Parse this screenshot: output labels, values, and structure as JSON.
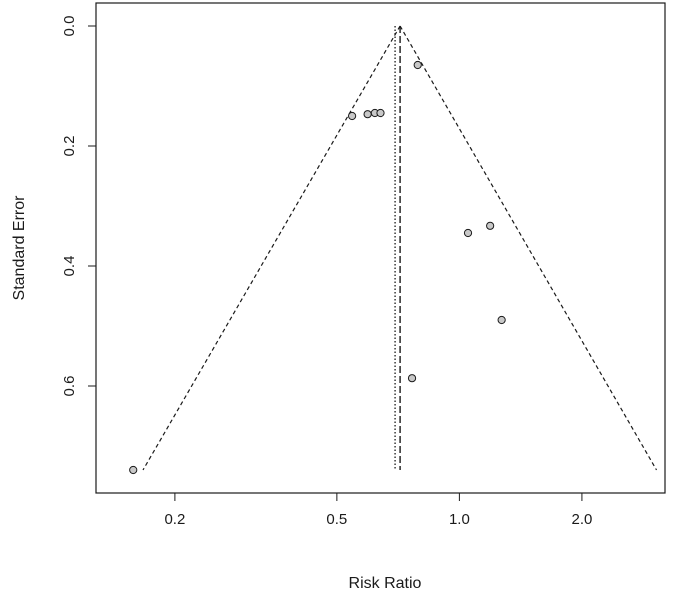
{
  "chart_data": {
    "type": "scatter",
    "subtype": "funnel-plot",
    "title": "",
    "xlabel": "Risk Ratio",
    "ylabel": "Standard Error",
    "x_scale": "log",
    "x_ticks": [
      0.2,
      0.5,
      1.0,
      2.0
    ],
    "x_tick_labels": [
      "0.2",
      "0.5",
      "1.0",
      "2.0"
    ],
    "y_ticks": [
      0.0,
      0.2,
      0.4,
      0.6
    ],
    "y_tick_labels": [
      "0.0",
      "0.2",
      "0.4",
      "0.6"
    ],
    "y_reversed": true,
    "xlim": [
      0.128,
      3.2
    ],
    "ylim": [
      0.0,
      0.76
    ],
    "grid": false,
    "points": [
      {
        "x": 0.158,
        "y": 0.74
      },
      {
        "x": 0.545,
        "y": 0.15
      },
      {
        "x": 0.595,
        "y": 0.147
      },
      {
        "x": 0.62,
        "y": 0.145
      },
      {
        "x": 0.64,
        "y": 0.145
      },
      {
        "x": 0.79,
        "y": 0.065
      },
      {
        "x": 1.05,
        "y": 0.345
      },
      {
        "x": 1.19,
        "y": 0.333
      },
      {
        "x": 1.27,
        "y": 0.49
      },
      {
        "x": 0.765,
        "y": 0.587
      }
    ],
    "summary_estimate": 0.715,
    "alt_estimate": 0.695,
    "funnel_base_se": 0.74,
    "funnel_left_x": 0.167,
    "funnel_right_x": 3.05,
    "colors": {
      "point_fill": "#c8c8c8",
      "point_stroke": "#1a1a1a",
      "line": "#1a1a1a",
      "frame": "#1a1a1a"
    }
  }
}
